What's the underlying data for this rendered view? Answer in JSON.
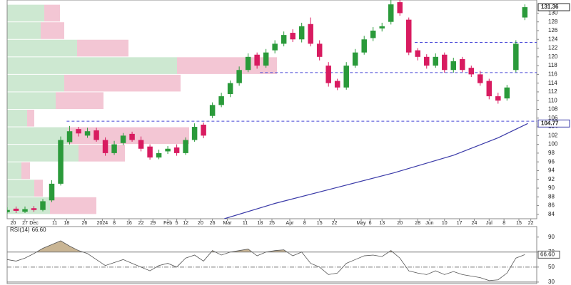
{
  "chart_data": {
    "type": "candlestick",
    "xlim": [
      0,
      178
    ],
    "ylim": [
      83,
      133
    ],
    "xticks": [
      {
        "value": 2,
        "label": "20"
      },
      {
        "value": 6,
        "label": "27"
      },
      {
        "value": 9,
        "label": "Dec"
      },
      {
        "value": 16,
        "label": "11"
      },
      {
        "value": 20,
        "label": "18"
      },
      {
        "value": 26,
        "label": "26"
      },
      {
        "value": 32,
        "label": "2024"
      },
      {
        "value": 36,
        "label": "8"
      },
      {
        "value": 41,
        "label": "16"
      },
      {
        "value": 45,
        "label": "22"
      },
      {
        "value": 49,
        "label": "29"
      },
      {
        "value": 54,
        "label": "Feb"
      },
      {
        "value": 57,
        "label": "5"
      },
      {
        "value": 60,
        "label": "12"
      },
      {
        "value": 65,
        "label": "20"
      },
      {
        "value": 69,
        "label": "26"
      },
      {
        "value": 74,
        "label": "Mar"
      },
      {
        "value": 80,
        "label": "11"
      },
      {
        "value": 85,
        "label": "18"
      },
      {
        "value": 89,
        "label": "25"
      },
      {
        "value": 95,
        "label": "Apr"
      },
      {
        "value": 100,
        "label": "8"
      },
      {
        "value": 105,
        "label": "15"
      },
      {
        "value": 110,
        "label": "22"
      },
      {
        "value": 119,
        "label": "May"
      },
      {
        "value": 122,
        "label": "6"
      },
      {
        "value": 126,
        "label": "13"
      },
      {
        "value": 132,
        "label": "20"
      },
      {
        "value": 138,
        "label": "28"
      },
      {
        "value": 142,
        "label": "Jun"
      },
      {
        "value": 147,
        "label": "10"
      },
      {
        "value": 152,
        "label": "17"
      },
      {
        "value": 157,
        "label": "24"
      },
      {
        "value": 162,
        "label": "Jul"
      },
      {
        "value": 167,
        "label": "8"
      },
      {
        "value": 172,
        "label": "15"
      },
      {
        "value": 176,
        "label": "22"
      }
    ],
    "yticks": [
      84,
      86,
      88,
      90,
      92,
      94,
      96,
      98,
      100,
      102,
      104,
      106,
      108,
      110,
      112,
      114,
      116,
      118,
      120,
      122,
      124,
      126,
      128,
      130
    ],
    "up_color": "#2a9a3a",
    "down_color": "#d81b60",
    "candles": {
      "x": [
        0,
        3,
        6,
        9,
        12,
        15,
        18,
        21,
        24,
        27,
        30,
        33,
        36,
        39,
        42,
        45,
        48,
        51,
        54,
        57,
        60,
        63,
        66,
        69,
        72,
        75,
        78,
        81,
        84,
        87,
        90,
        93,
        96,
        99,
        102,
        105,
        108,
        111,
        114,
        117,
        120,
        123,
        126,
        129,
        132,
        135,
        138,
        141,
        144,
        147,
        150,
        153,
        156,
        159,
        162,
        165,
        168,
        171,
        174
      ],
      "open": [
        84.5,
        85.3,
        84.6,
        85.4,
        85,
        87.2,
        91,
        100.5,
        103.5,
        102,
        103.2,
        101,
        98,
        100.3,
        102.4,
        101,
        99.5,
        97,
        98.4,
        99.3,
        98,
        101,
        104.5,
        106.5,
        109,
        111.5,
        114,
        117,
        120.5,
        118,
        121.5,
        123,
        125.5,
        124,
        127.5,
        123,
        118,
        114.5,
        113,
        118,
        121,
        124.3,
        126.5,
        128,
        132.5,
        128.5,
        121.5,
        120,
        118,
        120.5,
        117,
        119.5,
        117.5,
        116,
        114.5,
        111,
        110.5,
        117,
        129
      ],
      "high": [
        85.6,
        85.8,
        85.8,
        85.9,
        87.5,
        91.8,
        101.8,
        104.2,
        104,
        103.8,
        103.8,
        101.6,
        100.8,
        102.6,
        102.9,
        101.8,
        100,
        98.8,
        99.6,
        100,
        101.6,
        104.8,
        105,
        109.6,
        111.8,
        114.6,
        117.8,
        120.8,
        121,
        121.8,
        123.8,
        125.8,
        126.3,
        127.8,
        129,
        123.8,
        118.8,
        115,
        118.8,
        121.8,
        124.8,
        126.8,
        127.8,
        133,
        133,
        129,
        122,
        120.6,
        120.8,
        121,
        119.8,
        120,
        118,
        116.8,
        115,
        111.8,
        113.6,
        123.8,
        132
      ],
      "low": [
        84.2,
        84.3,
        84.3,
        84.6,
        84.7,
        86.8,
        90.6,
        100,
        101.8,
        101.5,
        100.6,
        97.4,
        97.6,
        99.8,
        100.6,
        98.4,
        96.5,
        96.6,
        97.8,
        97.4,
        97.6,
        100.6,
        101.4,
        106,
        108.5,
        110.8,
        113.4,
        116.5,
        117.3,
        117.5,
        120.8,
        122.4,
        123.4,
        123.3,
        122.4,
        119.2,
        113.2,
        112.4,
        112.5,
        117.5,
        120.5,
        123.6,
        125.8,
        127.4,
        129.4,
        120.4,
        119.2,
        117.3,
        117.5,
        116.4,
        116.4,
        116.5,
        115.4,
        113.4,
        110.3,
        109.3,
        110,
        116.5,
        128.4
      ],
      "close": [
        85,
        84.8,
        85.2,
        85,
        87,
        91,
        101,
        103,
        102.5,
        103,
        101,
        98,
        100,
        102,
        101,
        99,
        97,
        98,
        99,
        98,
        101,
        104,
        102,
        109,
        111,
        114,
        117,
        120,
        118,
        121,
        123,
        125,
        124,
        127,
        123,
        120,
        114,
        113,
        118,
        121,
        124,
        126,
        127,
        132,
        130,
        121,
        120,
        118,
        120,
        117,
        119,
        117,
        116,
        114,
        111,
        110,
        113,
        123,
        131.36
      ]
    },
    "moving_average": {
      "color": "#3a3aa8",
      "x": [
        73,
        90,
        110,
        130,
        150,
        165,
        175
      ],
      "values": [
        83,
        86.5,
        90,
        93.5,
        97.5,
        101.5,
        104.77
      ]
    },
    "levels": [
      {
        "value": 105.3,
        "from": 20,
        "color": "#4a4ad8"
      },
      {
        "value": 116.4,
        "from": 85,
        "color": "#4a4ad8"
      },
      {
        "value": 123.3,
        "from": 137,
        "color": "#4a4ad8"
      }
    ],
    "volume_by_price": {
      "zones": [
        84,
        88,
        92,
        96,
        100,
        104,
        108,
        112,
        116,
        120,
        124,
        128,
        132
      ],
      "up": [
        60,
        38,
        20,
        100,
        85,
        28,
        68,
        80,
        238,
        98,
        47,
        52
      ],
      "down": [
        65,
        12,
        12,
        65,
        170,
        10,
        67,
        163,
        140,
        72,
        33,
        22
      ],
      "up_color": "#cde8d1",
      "down_color": "#f3c6d4"
    },
    "rsi": {
      "name": "RSI(14)",
      "color": "#555555",
      "ylim": [
        28,
        104
      ],
      "yticks": [
        30,
        50,
        70,
        90
      ],
      "overbought": 70,
      "oversold": 30,
      "midline": 50,
      "x": [
        0,
        3,
        6,
        9,
        12,
        15,
        18,
        21,
        24,
        27,
        30,
        33,
        36,
        39,
        42,
        45,
        48,
        51,
        54,
        57,
        60,
        63,
        66,
        69,
        72,
        75,
        78,
        81,
        84,
        87,
        90,
        93,
        96,
        99,
        102,
        105,
        108,
        111,
        114,
        117,
        120,
        123,
        126,
        129,
        132,
        135,
        138,
        141,
        144,
        147,
        150,
        153,
        156,
        159,
        162,
        165,
        168,
        171,
        174
      ],
      "values": [
        60,
        58,
        62,
        68,
        75,
        80,
        85,
        78,
        72,
        68,
        60,
        52,
        56,
        60,
        55,
        50,
        45,
        52,
        55,
        50,
        62,
        66,
        58,
        72,
        66,
        70,
        72,
        74,
        65,
        70,
        72,
        73,
        65,
        70,
        55,
        50,
        40,
        42,
        55,
        60,
        65,
        66,
        64,
        72,
        62,
        45,
        42,
        40,
        45,
        40,
        44,
        40,
        38,
        36,
        32,
        33,
        42,
        62,
        66.6
      ],
      "value_labels": {
        "58": "66.60"
      }
    }
  }
}
